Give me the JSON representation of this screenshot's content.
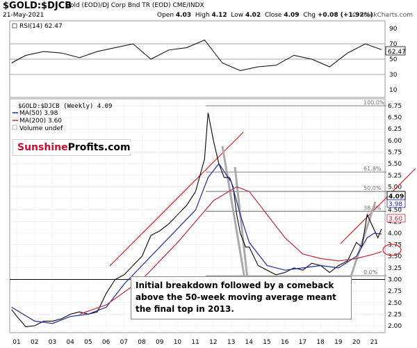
{
  "header": {
    "symbol": "$GOLD:$DJCB",
    "description": "Gold (EOD)/DJ Corp Bnd TR (EOD)  CME/INDX",
    "date": "21-May-2021",
    "open_label": "Open",
    "open": "4.03",
    "high_label": "High",
    "high": "4.12",
    "low_label": "Low",
    "low": "4.02",
    "close_label": "Close",
    "close": "4.09",
    "chg_label": "Chg",
    "chg": "+0.08 (+1.92%)",
    "site": "© StockCharts.com"
  },
  "rsi_panel": {
    "legend": "RSI(14) 62.47",
    "value_badge": "62.47",
    "ticks": [
      "90",
      "70",
      "50",
      "30",
      "10"
    ]
  },
  "price_panel": {
    "legend_title": "$GOLD:$DJCB (Weekly) 4.09",
    "legend_ma50": "MA(50) 3.98",
    "legend_ma200": "MA(200) 3.60",
    "legend_volume": "Volume undef",
    "badge_close": "4.09",
    "badge_ma50": "3.98",
    "badge_ma200": "3.60"
  },
  "logo": {
    "part1": "Sunshine",
    "part2": "Profits.com"
  },
  "callout": {
    "line1": "Initial breakdown followed by a comeback",
    "line2": "above the 50-week moving average meant",
    "line3": "the final top in 2013."
  },
  "chart_data": {
    "type": "line",
    "title": "$GOLD:$DJCB (Weekly)",
    "y_ticks": [
      2.0,
      2.25,
      2.5,
      2.75,
      3.0,
      3.25,
      3.5,
      3.75,
      4.0,
      4.25,
      4.5,
      4.75,
      5.0,
      5.25,
      5.5,
      5.75,
      6.0,
      6.25,
      6.5,
      6.75
    ],
    "y_tick_labels": [
      "2.00",
      "2.25",
      "2.50",
      "2.75",
      "3.00",
      "3.25",
      "3.50",
      "3.75",
      "4.00",
      "4.25",
      "4.50",
      "4.75",
      "5.00",
      "5.25",
      "5.50",
      "5.75",
      "6.00",
      "6.25",
      "6.50",
      "6.75"
    ],
    "ylim": [
      1.85,
      6.9
    ],
    "x_tick_labels": [
      "01",
      "02",
      "03",
      "04",
      "05",
      "06",
      "07",
      "08",
      "09",
      "10",
      "11",
      "12",
      "13",
      "14",
      "15",
      "16",
      "17",
      "18",
      "19",
      "20",
      "21"
    ],
    "xlim": [
      2000.6,
      2021.6
    ],
    "price_series": {
      "name": "$GOLD:$DJCB",
      "x": [
        2000.7,
        2001.0,
        2001.5,
        2002.0,
        2002.5,
        2003.0,
        2003.5,
        2004.0,
        2004.5,
        2005.0,
        2005.5,
        2006.0,
        2006.5,
        2007.0,
        2007.5,
        2008.0,
        2008.5,
        2009.0,
        2009.5,
        2010.0,
        2010.5,
        2011.0,
        2011.5,
        2011.7,
        2012.0,
        2012.3,
        2012.6,
        2012.9,
        2013.1,
        2013.3,
        2013.5,
        2013.8,
        2014.0,
        2014.5,
        2015.0,
        2015.5,
        2016.0,
        2016.5,
        2017.0,
        2017.5,
        2018.0,
        2018.5,
        2019.0,
        2019.5,
        2020.0,
        2020.3,
        2020.6,
        2020.9,
        2021.2,
        2021.4
      ],
      "values": [
        2.35,
        2.2,
        1.98,
        2.0,
        2.1,
        2.1,
        2.15,
        2.25,
        2.3,
        2.25,
        2.3,
        2.7,
        3.0,
        3.1,
        3.3,
        3.5,
        3.95,
        4.05,
        4.2,
        4.4,
        4.6,
        4.9,
        5.6,
        6.6,
        6.0,
        5.5,
        5.2,
        5.2,
        5.0,
        4.4,
        4.0,
        3.7,
        3.7,
        3.3,
        3.2,
        3.1,
        3.15,
        3.25,
        3.2,
        3.35,
        3.3,
        3.15,
        3.3,
        3.4,
        3.8,
        3.7,
        4.4,
        4.15,
        3.9,
        4.09
      ]
    },
    "ma50_series": {
      "name": "MA(50)",
      "x": [
        2000.7,
        2002.0,
        2003.0,
        2004.0,
        2005.0,
        2006.0,
        2007.0,
        2008.0,
        2009.0,
        2010.0,
        2011.0,
        2011.7,
        2012.3,
        2013.0,
        2013.5,
        2014.0,
        2015.0,
        2016.0,
        2017.0,
        2018.0,
        2019.0,
        2020.0,
        2020.6,
        2021.0,
        2021.4
      ],
      "values": [
        2.4,
        2.1,
        2.05,
        2.2,
        2.25,
        2.4,
        2.9,
        3.3,
        3.7,
        4.1,
        4.5,
        5.2,
        5.5,
        5.1,
        4.4,
        3.8,
        3.3,
        3.2,
        3.25,
        3.3,
        3.25,
        3.5,
        3.9,
        4.0,
        3.98
      ]
    },
    "ma200_series": {
      "name": "MA(200)",
      "x": [
        2004.5,
        2006.0,
        2008.0,
        2010.0,
        2012.0,
        2013.3,
        2014.0,
        2015.0,
        2016.0,
        2017.0,
        2018.0,
        2019.0,
        2020.0,
        2021.0,
        2021.4
      ],
      "values": [
        2.25,
        2.45,
        3.0,
        3.8,
        4.7,
        5.0,
        4.9,
        4.4,
        3.9,
        3.55,
        3.45,
        3.4,
        3.45,
        3.55,
        3.6
      ]
    },
    "fib_levels": [
      {
        "label": "100.0%",
        "value": 6.75
      },
      {
        "label": "61.8%",
        "value": 5.32
      },
      {
        "label": "50.0%",
        "value": 4.9
      },
      {
        "label": "38.2%",
        "value": 4.47
      },
      {
        "label": "0.0%",
        "value": 3.08
      }
    ],
    "horizontal_line": 3.0,
    "rsi_series": {
      "name": "RSI(14)",
      "x": [
        2000.7,
        2001.5,
        2002.5,
        2003.5,
        2004.5,
        2005.5,
        2006.5,
        2007.5,
        2008.5,
        2009.5,
        2010.5,
        2011.5,
        2012.5,
        2013.5,
        2014.5,
        2015.5,
        2016.5,
        2017.5,
        2018.5,
        2019.5,
        2020.5,
        2021.4
      ],
      "values": [
        45,
        55,
        60,
        58,
        52,
        60,
        65,
        70,
        50,
        62,
        65,
        75,
        45,
        35,
        40,
        42,
        55,
        50,
        40,
        58,
        70,
        62.47
      ]
    },
    "rsi_ylim": [
      0,
      100
    ],
    "rsi_guides": [
      70,
      50,
      30
    ]
  }
}
